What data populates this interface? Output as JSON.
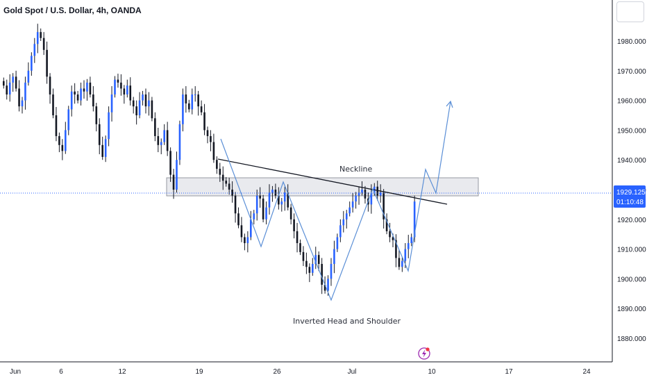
{
  "title": "Gold Spot / U.S. Dollar, 4h, OANDA",
  "colors": {
    "candle": "#131722",
    "accent_blue": "#2962ff",
    "pattern_line": "#5b8fd6",
    "zone_fill": "#e9eaee",
    "zone_stroke": "#9598a1",
    "price_badge": "#2962ff",
    "grid_border": "#131722",
    "event_icon": "#9c27b0",
    "event_dot": "#f23645"
  },
  "chart_data": {
    "type": "candlestick",
    "symbol": "XAUUSD",
    "interval": "4h",
    "ylim": [
      1873,
      1993
    ],
    "yticks": [
      1980,
      1970,
      1960,
      1950,
      1940,
      1930,
      1920,
      1910,
      1900,
      1890,
      1880
    ],
    "ytick_labels": [
      "1980.000",
      "1970.000",
      "1960.000",
      "1950.000",
      "1940.000",
      "1930.000",
      "1920.000",
      "1910.000",
      "1900.000",
      "1890.000",
      "1880.000"
    ],
    "xticks": [
      "Jun",
      "6",
      "12",
      "19",
      "26",
      "Jul",
      "10",
      "17",
      "24"
    ],
    "current_price": "1929.125",
    "countdown": "01:10:48",
    "close_values": [
      1965,
      1962,
      1966,
      1968,
      1964,
      1958,
      1960,
      1966,
      1970,
      1975,
      1979,
      1983,
      1981,
      1977,
      1968,
      1962,
      1955,
      1948,
      1945,
      1943,
      1950,
      1957,
      1963,
      1962,
      1960,
      1964,
      1963,
      1966,
      1962,
      1958,
      1952,
      1945,
      1941,
      1947,
      1956,
      1962,
      1967,
      1966,
      1964,
      1962,
      1965,
      1960,
      1958,
      1955,
      1960,
      1962,
      1958,
      1960,
      1954,
      1948,
      1945,
      1946,
      1950,
      1943,
      1935,
      1930,
      1940,
      1952,
      1962,
      1959,
      1957,
      1962,
      1962,
      1958,
      1956,
      1950,
      1948,
      1946,
      1940,
      1937,
      1935,
      1933,
      1932,
      1930,
      1928,
      1922,
      1918,
      1914,
      1912,
      1914,
      1920,
      1922,
      1928,
      1927,
      1920,
      1924,
      1929,
      1930,
      1928,
      1925,
      1926,
      1929,
      1924,
      1920,
      1916,
      1912,
      1909,
      1906,
      1904,
      1902,
      1905,
      1908,
      1905,
      1898,
      1896,
      1900,
      1905,
      1910,
      1914,
      1918,
      1920,
      1922,
      1924,
      1926,
      1928,
      1929,
      1930,
      1927,
      1925,
      1929,
      1931,
      1928,
      1929,
      1920,
      1916,
      1914,
      1913,
      1907,
      1904,
      1906,
      1910,
      1912,
      1914,
      1926
    ],
    "annotations": {
      "neckline_label": "Neckline",
      "pattern_label": "Inverted Head and Shoulder"
    }
  }
}
